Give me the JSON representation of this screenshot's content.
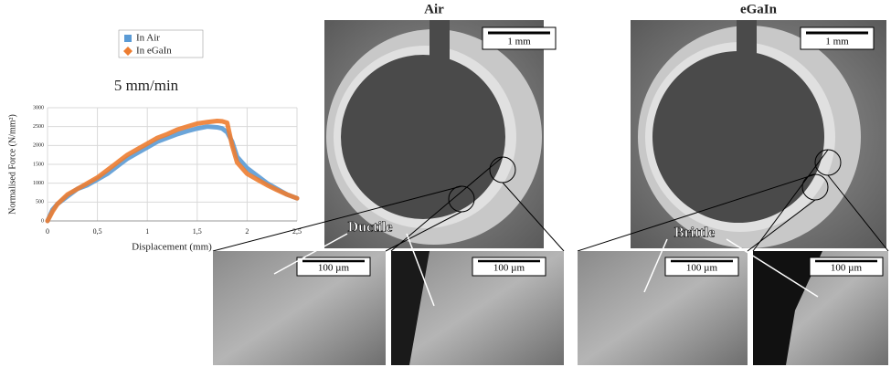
{
  "chart_data": {
    "type": "line",
    "title": "5 mm/min",
    "x_label": "Displacement (mm)",
    "y_label": "Normalised Force (N/mm²)",
    "x": [
      0,
      0.05,
      0.1,
      0.2,
      0.3,
      0.4,
      0.5,
      0.6,
      0.7,
      0.8,
      0.9,
      1.0,
      1.1,
      1.2,
      1.3,
      1.4,
      1.5,
      1.6,
      1.7,
      1.75,
      1.8,
      1.85,
      1.9,
      2.0,
      2.1,
      2.2,
      2.3,
      2.4,
      2.5
    ],
    "series": [
      {
        "name": "In Air",
        "color": "#5b9bd5",
        "values": [
          0,
          300,
          450,
          650,
          850,
          950,
          1100,
          1250,
          1450,
          1650,
          1800,
          1950,
          2100,
          2200,
          2300,
          2380,
          2450,
          2500,
          2480,
          2450,
          2350,
          2100,
          1700,
          1400,
          1200,
          1000,
          850,
          700,
          600
        ]
      },
      {
        "name": "In eGaIn",
        "color": "#ed7d31",
        "values": [
          0,
          250,
          450,
          700,
          850,
          1000,
          1150,
          1350,
          1550,
          1750,
          1900,
          2050,
          2200,
          2300,
          2420,
          2500,
          2580,
          2620,
          2650,
          2640,
          2600,
          2000,
          1550,
          1250,
          1100,
          950,
          820,
          700,
          600
        ]
      }
    ],
    "xlim": [
      0,
      2.5
    ],
    "xticks": [
      0,
      {
        "value": 0.5,
        "label": "0,5"
      },
      1,
      {
        "value": 1.5,
        "label": "1,5"
      },
      2,
      {
        "value": 2.5,
        "label": "2,5"
      }
    ],
    "ylim": [
      0,
      3000
    ],
    "yticks": [
      0,
      500,
      1000,
      1500,
      2000,
      2500,
      3000
    ],
    "grid": true
  },
  "panels": {
    "air": {
      "title": "Air",
      "scale": "1 mm"
    },
    "egain": {
      "title": "eGaIn",
      "scale": "1 mm"
    },
    "insets": [
      "100 µm",
      "100 µm",
      "100 µm",
      "100 µm"
    ],
    "annotations": [
      "Ductile",
      "Brittle"
    ]
  }
}
